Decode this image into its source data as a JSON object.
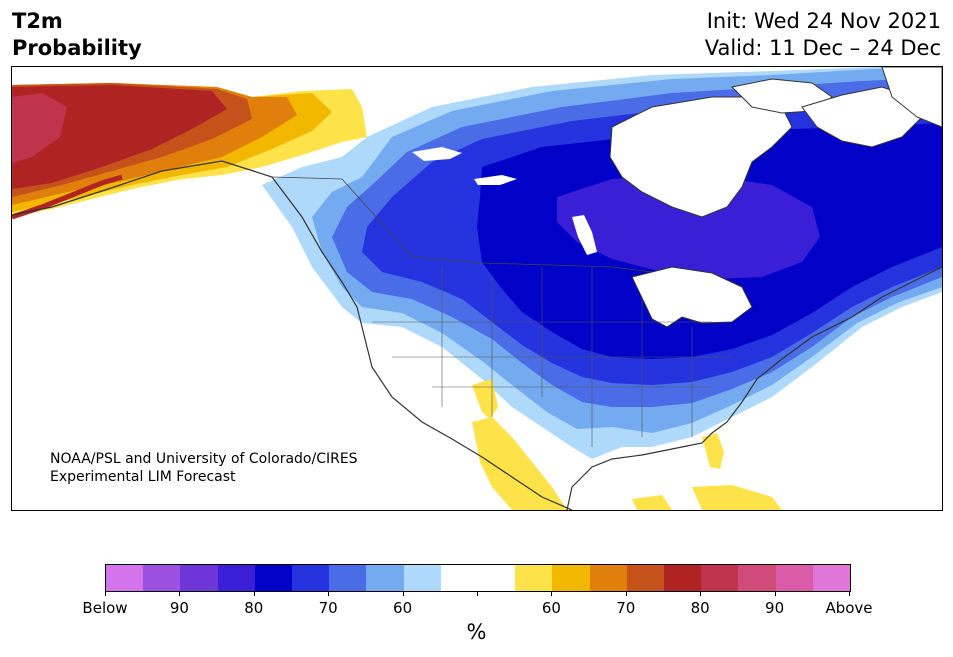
{
  "header": {
    "title_line1": "T2m",
    "title_line2": "Probability",
    "init": "Init: Wed 24 Nov 2021",
    "valid": "Valid: 11 Dec – 24 Dec"
  },
  "map": {
    "credit_line1": "NOAA/PSL and University of Colorado/CIRES",
    "credit_line2": "Experimental LIM Forecast",
    "palette": {
      "below_90": "#9b50e0",
      "below_80": "#6e35d8",
      "below_70": "#3a1fd6",
      "below_60": "#0101c7",
      "below_55": "#2433dd",
      "below_50": "#4a6ce6",
      "below_45": "#73aaf0",
      "below_40": "#aed9fb",
      "above_40": "#fde24a",
      "above_50": "#f2b800",
      "above_60": "#e07f0b",
      "above_70": "#c4521a",
      "above_80": "#b02323"
    }
  },
  "colorbar": {
    "colors": [
      "#d374ec",
      "#9b50e0",
      "#6e35d8",
      "#3a1fd6",
      "#0101c7",
      "#2433dd",
      "#4a6ce6",
      "#73aaf0",
      "#aed9fb",
      "#ffffff",
      "#ffffff",
      "#fde24a",
      "#f2b800",
      "#e07f0b",
      "#c4521a",
      "#b02323",
      "#c0334c",
      "#d04b7a",
      "#da5ca8",
      "#e276d8"
    ],
    "tick_labels": [
      "Below",
      "90",
      "80",
      "70",
      "60",
      "",
      "60",
      "70",
      "80",
      "90",
      "Above"
    ],
    "unit_label": "%"
  }
}
